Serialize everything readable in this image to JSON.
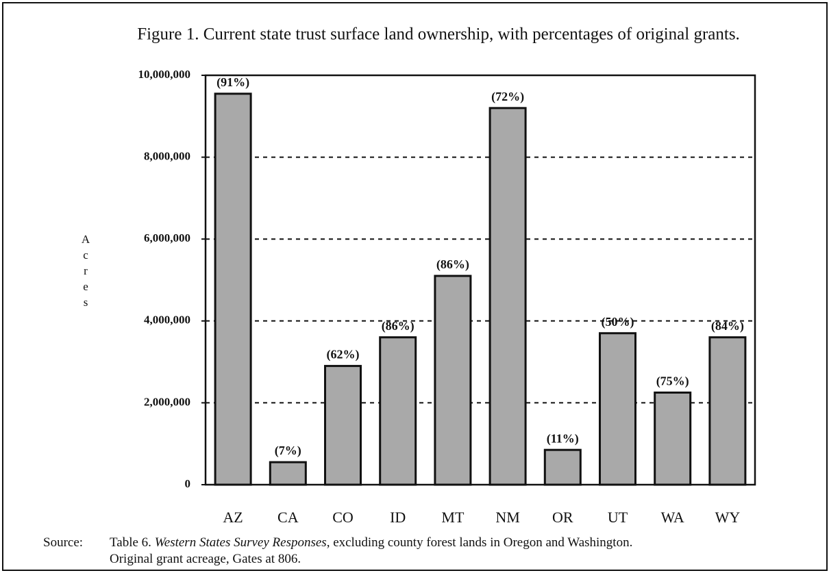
{
  "chart_data": {
    "type": "bar",
    "title": "Figure 1.  Current state trust surface land ownership, with percentages of original grants.",
    "y_label": "Acres",
    "categories": [
      "AZ",
      "CA",
      "CO",
      "ID",
      "MT",
      "NM",
      "OR",
      "UT",
      "WA",
      "WY"
    ],
    "values": [
      9550000,
      550000,
      2900000,
      3600000,
      5100000,
      9200000,
      850000,
      3700000,
      2250000,
      3600000
    ],
    "bar_labels": [
      "(91%)",
      "(7%)",
      "(62%)",
      "(86%)",
      "(86%)",
      "(72%)",
      "(11%)",
      "(50%)",
      "(75%)",
      "(84%)"
    ],
    "color": "#a9a9a9",
    "ylim": [
      0,
      10000000
    ],
    "yticks": [
      0,
      {
        "value": 2000000,
        "label": "2,000,000"
      },
      {
        "value": 4000000,
        "label": "4,000,000"
      },
      {
        "value": 6000000,
        "label": "6,000,000"
      },
      {
        "value": 8000000,
        "label": "8,000,000"
      },
      {
        "value": 10000000,
        "label": "10,000,000"
      }
    ],
    "grid": true,
    "source": {
      "label": "Source:",
      "line1": [
        "Table 6. ",
        "Western States Survey Responses",
        ", excluding county forest lands in Oregon and Washington."
      ],
      "line2": "Original grant acreage, Gates at 806."
    }
  }
}
